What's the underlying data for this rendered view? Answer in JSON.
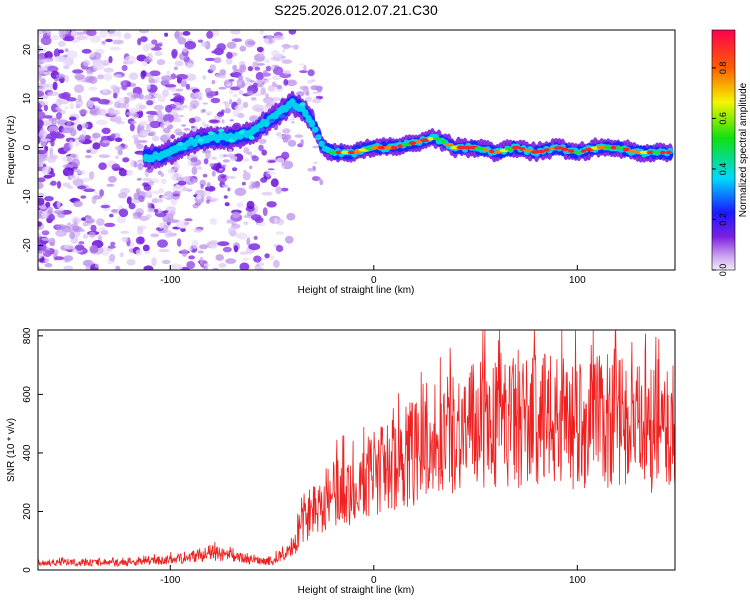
{
  "title": "S225.2026.012.07.21.C30",
  "chart_data": [
    {
      "type": "heatmap",
      "title": "S225.2026.012.07.21.C30",
      "xlabel": "Height of straight line (km)",
      "ylabel": "Frequency (Hz)",
      "xlim": [
        -165,
        148
      ],
      "ylim": [
        -25,
        24
      ],
      "xticks": [
        -100,
        0,
        100
      ],
      "yticks": [
        20,
        10,
        0,
        -10,
        -20
      ],
      "ridge": {
        "x": [
          -110,
          -100,
          -90,
          -80,
          -70,
          -60,
          -50,
          -40,
          -35,
          -30,
          -25,
          -20,
          -10,
          0,
          10,
          20,
          30,
          40,
          50,
          60,
          70,
          80,
          90,
          100,
          110,
          120,
          130,
          145
        ],
        "y": [
          -2,
          -1,
          1,
          2,
          2,
          3,
          6,
          9,
          8,
          5,
          0,
          -1,
          -1,
          0,
          0,
          1,
          2,
          0,
          0,
          -1,
          0,
          -1,
          0,
          -1,
          0,
          0,
          -1,
          -1
        ]
      },
      "colorbar": {
        "label": "Normalized spectral amplitude",
        "range": [
          0,
          0.95
        ],
        "ticks": [
          "0.0",
          "0.2",
          "0.4",
          "0.6",
          "0.8"
        ]
      }
    },
    {
      "type": "line",
      "xlabel": "Height of straight line (km)",
      "ylabel": "SNR (10 * v/v)",
      "xlim": [
        -165,
        148
      ],
      "ylim": [
        0,
        820
      ],
      "xticks": [
        -100,
        0,
        100
      ],
      "yticks": [
        0,
        200,
        400,
        600,
        800
      ],
      "color": "#ee2020",
      "envelope": {
        "x": [
          -165,
          -120,
          -100,
          -90,
          -80,
          -70,
          -60,
          -50,
          -40,
          -35,
          -30,
          -20,
          -10,
          0,
          10,
          20,
          30,
          40,
          60,
          80,
          100,
          120,
          140,
          148
        ],
        "y": [
          25,
          25,
          35,
          45,
          60,
          45,
          35,
          30,
          70,
          150,
          210,
          260,
          280,
          330,
          360,
          400,
          450,
          480,
          500,
          510,
          500,
          500,
          470,
          470
        ]
      }
    }
  ]
}
